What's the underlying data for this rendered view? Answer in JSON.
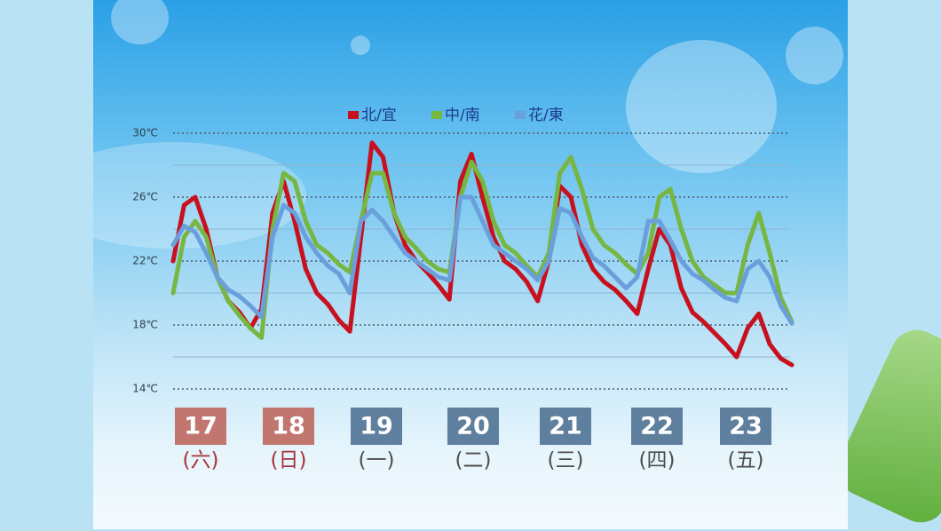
{
  "chart_data": {
    "type": "line",
    "ylim": [
      14,
      30
    ],
    "yticks": [
      {
        "value": 30,
        "label": "30℃"
      },
      {
        "value": 26,
        "label": "26℃"
      },
      {
        "value": 22,
        "label": "22℃"
      },
      {
        "value": 18,
        "label": "18℃"
      },
      {
        "value": 14,
        "label": "14℃"
      }
    ],
    "minor_yticks": [
      28,
      24,
      20,
      16
    ],
    "legend": "top",
    "series": [
      {
        "name": "北/宜",
        "color": "#c8111f",
        "values": [
          22,
          25.5,
          26,
          24,
          21,
          19.5,
          18.8,
          17.8,
          19,
          25,
          27,
          24.5,
          21.5,
          20,
          19.3,
          18.3,
          17.6,
          23.5,
          29.4,
          28.5,
          25,
          23,
          22,
          21.3,
          20.5,
          19.6,
          27,
          28.7,
          26,
          23.5,
          22,
          21.5,
          20.7,
          19.5,
          22,
          26.7,
          26,
          23,
          21.5,
          20.7,
          20.2,
          19.5,
          18.7,
          21.5,
          24,
          23,
          20.3,
          18.8,
          18.2,
          17.5,
          16.8,
          16,
          17.8,
          18.7,
          16.8,
          15.9,
          15.5
        ]
      },
      {
        "name": "中/南",
        "color": "#76b641",
        "values": [
          20,
          23.5,
          24.5,
          23.5,
          21,
          19.5,
          18.6,
          17.8,
          17.2,
          24,
          27.5,
          27,
          24.5,
          23,
          22.5,
          21.8,
          21.3,
          24.5,
          27.5,
          27.5,
          25,
          23.5,
          22.8,
          22,
          21.5,
          21.3,
          26,
          28.2,
          27,
          24.5,
          23,
          22.5,
          21.7,
          21,
          22.5,
          27.5,
          28.5,
          26.5,
          24,
          23,
          22.5,
          21.8,
          21.2,
          22.5,
          26,
          26.5,
          24,
          22,
          21,
          20.5,
          20,
          20,
          23,
          25,
          22.5,
          19.7,
          18.2
        ]
      },
      {
        "name": "花/東",
        "color": "#6a9fdc",
        "values": [
          23,
          24.2,
          23.8,
          22.5,
          21,
          20.2,
          19.8,
          19.2,
          18.5,
          23.5,
          25.5,
          25,
          23.5,
          22.5,
          21.7,
          21.2,
          20,
          24.5,
          25.2,
          24.5,
          23.5,
          22.5,
          22,
          21.5,
          21,
          20.8,
          26,
          26,
          24.5,
          23,
          22.5,
          22,
          21.5,
          20.8,
          22,
          25.3,
          25,
          23.5,
          22.2,
          21.7,
          21,
          20.3,
          21,
          24.5,
          24.5,
          23.3,
          22,
          21.2,
          20.8,
          20.2,
          19.7,
          19.5,
          21.5,
          22,
          21,
          19.2,
          18.1
        ]
      }
    ],
    "days": [
      {
        "date": "17",
        "weekday": "(六)",
        "box_color": "#c27670",
        "text_color": "#a8323a"
      },
      {
        "date": "18",
        "weekday": "(日)",
        "box_color": "#c27670",
        "text_color": "#a8323a"
      },
      {
        "date": "19",
        "weekday": "(一)",
        "box_color": "#5f7f9e",
        "text_color": "#4d4d4d"
      },
      {
        "date": "20",
        "weekday": "(二)",
        "box_color": "#5f7f9e",
        "text_color": "#4d4d4d"
      },
      {
        "date": "21",
        "weekday": "(三)",
        "box_color": "#5f7f9e",
        "text_color": "#4d4d4d"
      },
      {
        "date": "22",
        "weekday": "(四)",
        "box_color": "#5f7f9e",
        "text_color": "#4d4d4d"
      },
      {
        "date": "23",
        "weekday": "(五)",
        "box_color": "#5f7f9e",
        "text_color": "#4d4d4d"
      }
    ]
  }
}
